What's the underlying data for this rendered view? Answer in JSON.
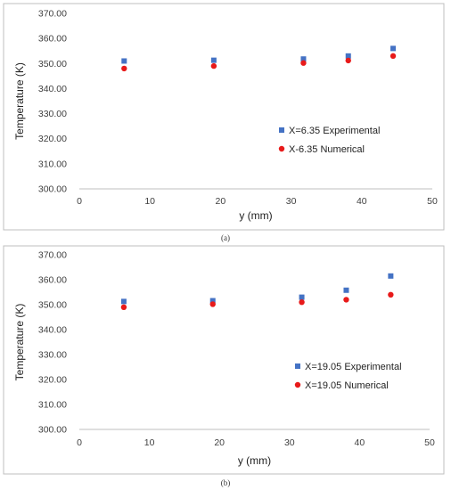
{
  "chart_data": [
    {
      "type": "scatter",
      "panel_label": "(a)",
      "xlabel": "y (mm)",
      "ylabel": "Temperature (K)",
      "xlim": [
        0,
        50
      ],
      "ylim": [
        300,
        370
      ],
      "x_ticks": [
        "0",
        "10",
        "20",
        "30",
        "40",
        "50"
      ],
      "y_ticks": [
        "300.00",
        "310.00",
        "320.00",
        "330.00",
        "340.00",
        "350.00",
        "360.00",
        "370.00"
      ],
      "legend_position": "center-right",
      "series": [
        {
          "name": "X=6.35 Experimental",
          "marker": "square",
          "color": "#4472c4",
          "x": [
            6.35,
            19.05,
            31.75,
            38.1,
            44.45
          ],
          "y": [
            351.0,
            351.3,
            351.8,
            353.0,
            356.0
          ]
        },
        {
          "name": "X-6.35 Numerical",
          "marker": "circle",
          "color": "#e81a1a",
          "x": [
            6.35,
            19.05,
            31.75,
            38.1,
            44.45
          ],
          "y": [
            348.0,
            349.0,
            350.2,
            351.2,
            353.0
          ]
        }
      ]
    },
    {
      "type": "scatter",
      "panel_label": "(b)",
      "xlabel": "y (mm)",
      "ylabel": "Temperature (K)",
      "xlim": [
        0,
        50
      ],
      "ylim": [
        300,
        370
      ],
      "x_ticks": [
        "0",
        "10",
        "20",
        "30",
        "40",
        "50"
      ],
      "y_ticks": [
        "300.00",
        "310.00",
        "320.00",
        "330.00",
        "340.00",
        "350.00",
        "360.00",
        "370.00"
      ],
      "legend_position": "center-right",
      "series": [
        {
          "name": "X=19.05 Experimental",
          "marker": "square",
          "color": "#4472c4",
          "x": [
            6.35,
            19.05,
            31.75,
            38.1,
            44.45
          ],
          "y": [
            351.3,
            351.6,
            353.0,
            355.8,
            361.5
          ]
        },
        {
          "name": "X=19.05 Numerical",
          "marker": "circle",
          "color": "#e81a1a",
          "x": [
            6.35,
            19.05,
            31.75,
            38.1,
            44.45
          ],
          "y": [
            349.0,
            350.2,
            351.0,
            352.0,
            354.0
          ]
        }
      ]
    }
  ]
}
